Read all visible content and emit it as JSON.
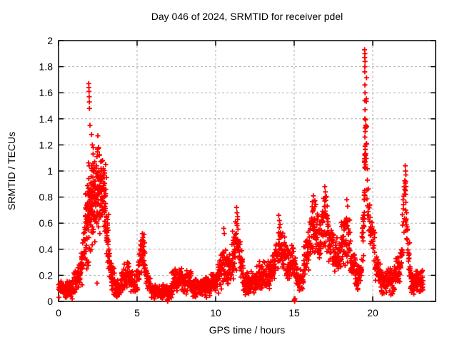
{
  "chart_data": {
    "type": "scatter",
    "title": "Day 046 of 2024, SRMTID for receiver pdel",
    "xlabel": "GPS time / hours",
    "ylabel": "SRMTID / TECUs",
    "xlim": [
      0,
      24
    ],
    "ylim": [
      0,
      2
    ],
    "xticks": [
      0,
      5,
      10,
      15,
      20
    ],
    "xtick_labels": [
      "0",
      "5",
      "10",
      "15",
      "20"
    ],
    "yticks": [
      0,
      0.2,
      0.4,
      0.6,
      0.8,
      1,
      1.2,
      1.4,
      1.6,
      1.8,
      2
    ],
    "ytick_labels": [
      "0",
      "0.2",
      "0.4",
      "0.6",
      "0.8",
      "1",
      "1.2",
      "1.4",
      "1.6",
      "1.8",
      "2"
    ],
    "grid": true,
    "legend": null,
    "marker": "plus",
    "marker_color": "#ff0000",
    "grid_color": "#b0b0b0",
    "border_color": "#000000",
    "background": "#ffffff",
    "series_name": "SRMTID receiver pdel",
    "seed": 987654321,
    "envelope_segments": [
      [
        0.0,
        0.9,
        85,
        0.09,
        0.09,
        0.055
      ],
      [
        0.9,
        1.35,
        40,
        0.13,
        0.2,
        0.08
      ],
      [
        1.35,
        1.7,
        38,
        0.2,
        0.42,
        0.13
      ],
      [
        1.7,
        2.05,
        70,
        0.5,
        0.8,
        0.32
      ],
      [
        2.05,
        2.3,
        55,
        0.75,
        0.85,
        0.3
      ],
      [
        2.3,
        2.65,
        60,
        0.8,
        0.85,
        0.28
      ],
      [
        2.65,
        2.95,
        55,
        0.85,
        0.8,
        0.22
      ],
      [
        2.95,
        3.2,
        40,
        0.7,
        0.4,
        0.22
      ],
      [
        3.2,
        3.55,
        40,
        0.28,
        0.13,
        0.1
      ],
      [
        3.55,
        4.0,
        55,
        0.1,
        0.1,
        0.055
      ],
      [
        4.0,
        4.5,
        45,
        0.16,
        0.25,
        0.09
      ],
      [
        4.5,
        4.95,
        42,
        0.17,
        0.12,
        0.07
      ],
      [
        4.95,
        5.2,
        25,
        0.15,
        0.3,
        0.1
      ],
      [
        5.2,
        5.5,
        30,
        0.35,
        0.38,
        0.13
      ],
      [
        5.5,
        5.85,
        32,
        0.22,
        0.11,
        0.07
      ],
      [
        5.85,
        7.2,
        130,
        0.075,
        0.075,
        0.045
      ],
      [
        7.2,
        7.75,
        50,
        0.13,
        0.2,
        0.08
      ],
      [
        7.75,
        8.45,
        65,
        0.16,
        0.16,
        0.08
      ],
      [
        8.45,
        9.35,
        85,
        0.1,
        0.1,
        0.055
      ],
      [
        9.35,
        10.1,
        70,
        0.12,
        0.15,
        0.07
      ],
      [
        10.1,
        10.65,
        50,
        0.2,
        0.32,
        0.13
      ],
      [
        10.65,
        11.05,
        38,
        0.25,
        0.28,
        0.12
      ],
      [
        11.05,
        11.45,
        45,
        0.32,
        0.5,
        0.17
      ],
      [
        11.45,
        11.8,
        32,
        0.42,
        0.2,
        0.12
      ],
      [
        11.8,
        12.6,
        80,
        0.14,
        0.14,
        0.07
      ],
      [
        12.6,
        13.35,
        70,
        0.2,
        0.2,
        0.1
      ],
      [
        13.35,
        13.8,
        45,
        0.18,
        0.28,
        0.1
      ],
      [
        13.8,
        14.25,
        48,
        0.35,
        0.45,
        0.15
      ],
      [
        14.25,
        14.65,
        38,
        0.4,
        0.28,
        0.12
      ],
      [
        14.65,
        15.1,
        40,
        0.3,
        0.3,
        0.11
      ],
      [
        15.1,
        15.6,
        45,
        0.17,
        0.15,
        0.08
      ],
      [
        15.6,
        16.1,
        50,
        0.28,
        0.5,
        0.15
      ],
      [
        16.1,
        16.5,
        45,
        0.55,
        0.55,
        0.18
      ],
      [
        16.5,
        16.85,
        35,
        0.5,
        0.55,
        0.15
      ],
      [
        16.85,
        17.15,
        32,
        0.6,
        0.6,
        0.19
      ],
      [
        17.15,
        17.55,
        38,
        0.48,
        0.35,
        0.13
      ],
      [
        17.55,
        18.0,
        42,
        0.33,
        0.38,
        0.12
      ],
      [
        18.0,
        18.55,
        50,
        0.45,
        0.5,
        0.17
      ],
      [
        18.55,
        18.9,
        32,
        0.35,
        0.22,
        0.11
      ],
      [
        18.9,
        19.3,
        38,
        0.17,
        0.2,
        0.08
      ],
      [
        19.3,
        19.5,
        22,
        0.35,
        0.8,
        0.22
      ],
      [
        19.45,
        19.62,
        26,
        0.8,
        1.5,
        0.28
      ],
      [
        19.62,
        20.15,
        45,
        0.8,
        0.38,
        0.18
      ],
      [
        20.15,
        20.5,
        35,
        0.28,
        0.18,
        0.09
      ],
      [
        20.5,
        21.35,
        80,
        0.15,
        0.15,
        0.08
      ],
      [
        21.35,
        21.8,
        42,
        0.18,
        0.28,
        0.1
      ],
      [
        21.8,
        22.1,
        26,
        0.35,
        0.85,
        0.2
      ],
      [
        22.1,
        22.4,
        26,
        0.6,
        0.25,
        0.13
      ],
      [
        22.4,
        23.2,
        100,
        0.15,
        0.15,
        0.07
      ]
    ],
    "peak_points": [
      [
        1.92,
        1.67
      ],
      [
        1.93,
        1.64
      ],
      [
        1.94,
        1.61
      ],
      [
        1.95,
        1.57
      ],
      [
        1.96,
        1.53
      ],
      [
        1.97,
        1.48
      ],
      [
        2.0,
        1.35
      ],
      [
        2.1,
        1.28
      ],
      [
        2.15,
        1.2
      ],
      [
        2.2,
        1.13
      ],
      [
        2.3,
        1.07
      ],
      [
        2.5,
        1.27
      ],
      [
        2.55,
        1.18
      ],
      [
        2.6,
        1.12
      ],
      [
        2.8,
        1.08
      ],
      [
        3.0,
        1.05
      ],
      [
        3.05,
        0.95
      ],
      [
        2.45,
        0.14
      ],
      [
        5.33,
        0.52
      ],
      [
        5.37,
        0.49
      ],
      [
        10.52,
        0.56
      ],
      [
        10.55,
        0.52
      ],
      [
        11.33,
        0.72
      ],
      [
        11.36,
        0.68
      ],
      [
        11.4,
        0.65
      ],
      [
        14.02,
        0.66
      ],
      [
        14.06,
        0.62
      ],
      [
        14.1,
        0.59
      ],
      [
        16.22,
        0.81
      ],
      [
        16.27,
        0.77
      ],
      [
        16.95,
        0.88
      ],
      [
        16.98,
        0.84
      ],
      [
        17.02,
        0.8
      ],
      [
        18.35,
        0.78
      ],
      [
        18.4,
        0.73
      ],
      [
        19.48,
        1.93
      ],
      [
        19.5,
        1.9
      ],
      [
        19.49,
        1.87
      ],
      [
        19.51,
        1.84
      ],
      [
        19.5,
        1.8
      ],
      [
        19.49,
        1.76
      ],
      [
        19.5,
        1.66
      ],
      [
        19.51,
        1.6
      ],
      [
        19.5,
        1.54
      ],
      [
        19.51,
        1.47
      ],
      [
        19.5,
        1.4
      ],
      [
        19.51,
        1.33
      ],
      [
        19.5,
        1.26
      ],
      [
        19.51,
        1.19
      ],
      [
        19.5,
        1.13
      ],
      [
        19.52,
        1.07
      ],
      [
        19.53,
        1.02
      ],
      [
        22.07,
        1.04
      ],
      [
        22.09,
        1.0
      ],
      [
        22.11,
        0.97
      ],
      [
        22.1,
        0.92
      ],
      [
        22.12,
        0.88
      ],
      [
        22.1,
        0.82
      ],
      [
        22.11,
        0.76
      ],
      [
        22.1,
        0.7
      ]
    ],
    "axis_outliers": [
      [
        6.93,
        0.01
      ],
      [
        6.95,
        0.0
      ],
      [
        6.97,
        0.02
      ],
      [
        15.01,
        0.01
      ],
      [
        15.03,
        0.0
      ],
      [
        15.05,
        0.02
      ]
    ]
  }
}
